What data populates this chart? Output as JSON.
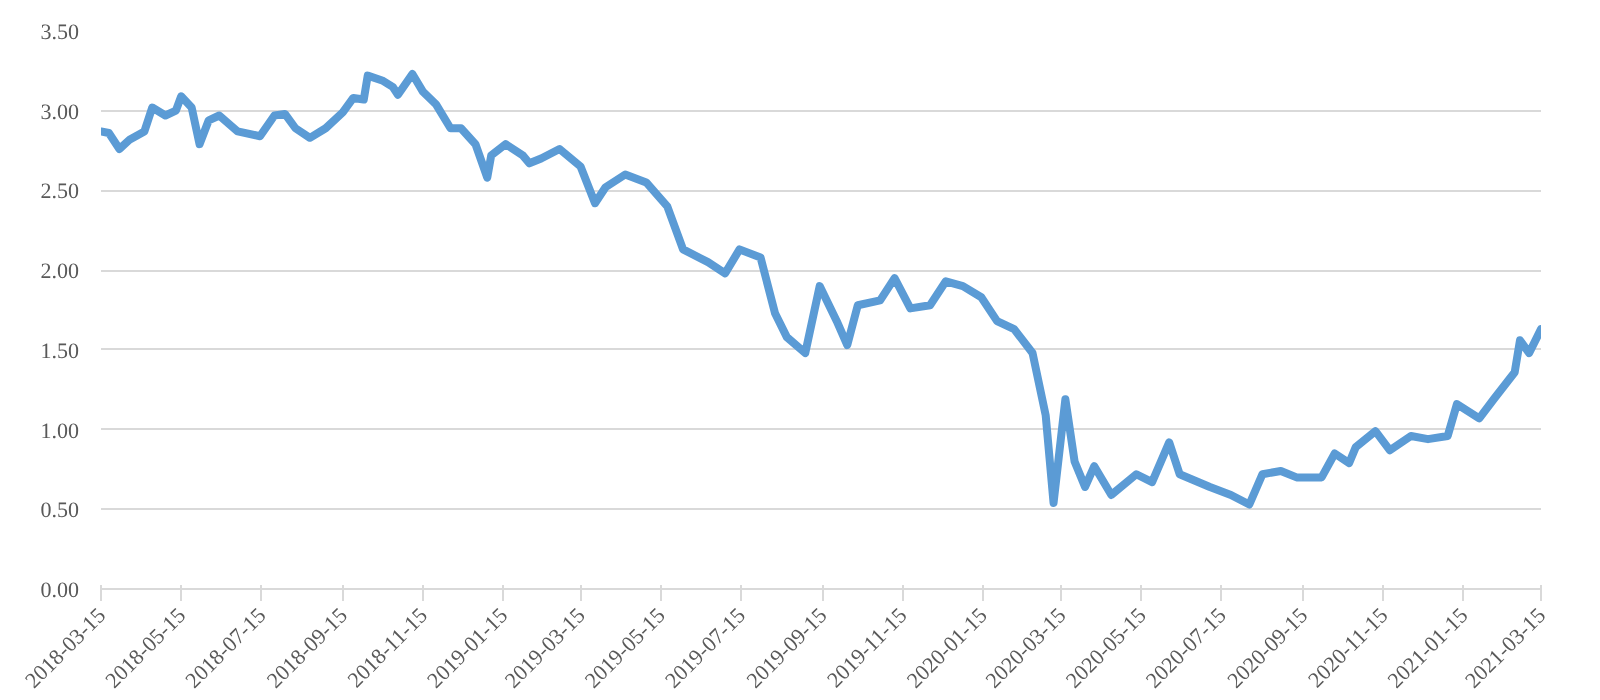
{
  "chart_data": {
    "type": "line",
    "xlim": [
      "2018-03-15",
      "2021-03-15"
    ],
    "xticks": [
      "2018-03-15",
      "2018-05-15",
      "2018-07-15",
      "2018-09-15",
      "2018-11-15",
      "2019-01-15",
      "2019-03-15",
      "2019-05-15",
      "2019-07-15",
      "2019-09-15",
      "2019-11-15",
      "2020-01-15",
      "2020-03-15",
      "2020-05-15",
      "2020-07-15",
      "2020-09-15",
      "2020-11-15",
      "2021-01-15",
      "2021-03-15"
    ],
    "ylim": [
      0,
      3.5
    ],
    "yticks": [
      {
        "value": 0,
        "label": "0.00"
      },
      {
        "value": 0.5,
        "label": "0.50"
      },
      {
        "value": 1,
        "label": "1.00"
      },
      {
        "value": 1.5,
        "label": "1.50"
      },
      {
        "value": 2,
        "label": "2.00"
      },
      {
        "value": 2.5,
        "label": "2.50"
      },
      {
        "value": 3,
        "label": "3.00"
      },
      {
        "value": 3.5,
        "label": "3.50"
      }
    ],
    "grid": "y",
    "marker": "none",
    "line_style": "solid",
    "series": [
      {
        "color": "#5b9bd5",
        "x": [
          "2018-03-15",
          "2018-03-21",
          "2018-03-29",
          "2018-04-06",
          "2018-04-17",
          "2018-04-23",
          "2018-05-03",
          "2018-05-11",
          "2018-05-15",
          "2018-05-23",
          "2018-05-29",
          "2018-06-05",
          "2018-06-13",
          "2018-06-27",
          "2018-07-14",
          "2018-07-25",
          "2018-08-02",
          "2018-08-10",
          "2018-08-21",
          "2018-09-02",
          "2018-09-15",
          "2018-09-23",
          "2018-10-01",
          "2018-10-04",
          "2018-10-15",
          "2018-10-23",
          "2018-10-27",
          "2018-11-07",
          "2018-11-15",
          "2018-11-25",
          "2018-12-06",
          "2018-12-14",
          "2018-12-25",
          "2019-01-03",
          "2019-01-06",
          "2019-01-17",
          "2019-01-30",
          "2019-02-04",
          "2019-02-13",
          "2019-02-27",
          "2019-03-15",
          "2019-03-26",
          "2019-04-03",
          "2019-04-18",
          "2019-05-04",
          "2019-05-20",
          "2019-06-01",
          "2019-06-20",
          "2019-07-03",
          "2019-07-14",
          "2019-07-30",
          "2019-08-10",
          "2019-08-19",
          "2019-09-02",
          "2019-09-13",
          "2019-09-26",
          "2019-10-04",
          "2019-10-12",
          "2019-10-29",
          "2019-11-09",
          "2019-11-21",
          "2019-12-06",
          "2019-12-18",
          "2019-12-31",
          "2020-01-14",
          "2020-01-26",
          "2020-02-08",
          "2020-02-22",
          "2020-03-03",
          "2020-03-09",
          "2020-03-18",
          "2020-03-25",
          "2020-04-02",
          "2020-04-09",
          "2020-04-22",
          "2020-05-11",
          "2020-05-23",
          "2020-06-05",
          "2020-06-13",
          "2020-07-06",
          "2020-07-22",
          "2020-08-05",
          "2020-08-15",
          "2020-08-29",
          "2020-09-10",
          "2020-09-29",
          "2020-10-09",
          "2020-10-20",
          "2020-10-25",
          "2020-11-09",
          "2020-11-20",
          "2020-12-06",
          "2020-12-19",
          "2021-01-03",
          "2021-01-10",
          "2021-01-27",
          "2021-02-07",
          "2021-02-23",
          "2021-02-27",
          "2021-03-06",
          "2021-03-15"
        ],
        "values": [
          2.87,
          2.86,
          2.76,
          2.82,
          2.87,
          3.02,
          2.97,
          3.0,
          3.09,
          3.02,
          2.79,
          2.94,
          2.97,
          2.87,
          2.84,
          2.97,
          2.98,
          2.89,
          2.83,
          2.89,
          2.99,
          3.08,
          3.07,
          3.22,
          3.19,
          3.15,
          3.1,
          3.23,
          3.12,
          3.04,
          2.89,
          2.89,
          2.79,
          2.58,
          2.72,
          2.79,
          2.72,
          2.67,
          2.7,
          2.76,
          2.65,
          2.42,
          2.52,
          2.6,
          2.55,
          2.4,
          2.13,
          2.05,
          1.98,
          2.13,
          2.08,
          1.73,
          1.58,
          1.48,
          1.9,
          1.68,
          1.53,
          1.78,
          1.81,
          1.95,
          1.76,
          1.78,
          1.93,
          1.9,
          1.83,
          1.68,
          1.63,
          1.48,
          1.09,
          0.54,
          1.19,
          0.8,
          0.64,
          0.77,
          0.59,
          0.72,
          0.67,
          0.92,
          0.72,
          0.64,
          0.59,
          0.53,
          0.72,
          0.74,
          0.7,
          0.7,
          0.85,
          0.79,
          0.89,
          0.99,
          0.87,
          0.96,
          0.94,
          0.96,
          1.16,
          1.07,
          1.19,
          1.36,
          1.56,
          1.48,
          1.63
        ]
      }
    ]
  }
}
